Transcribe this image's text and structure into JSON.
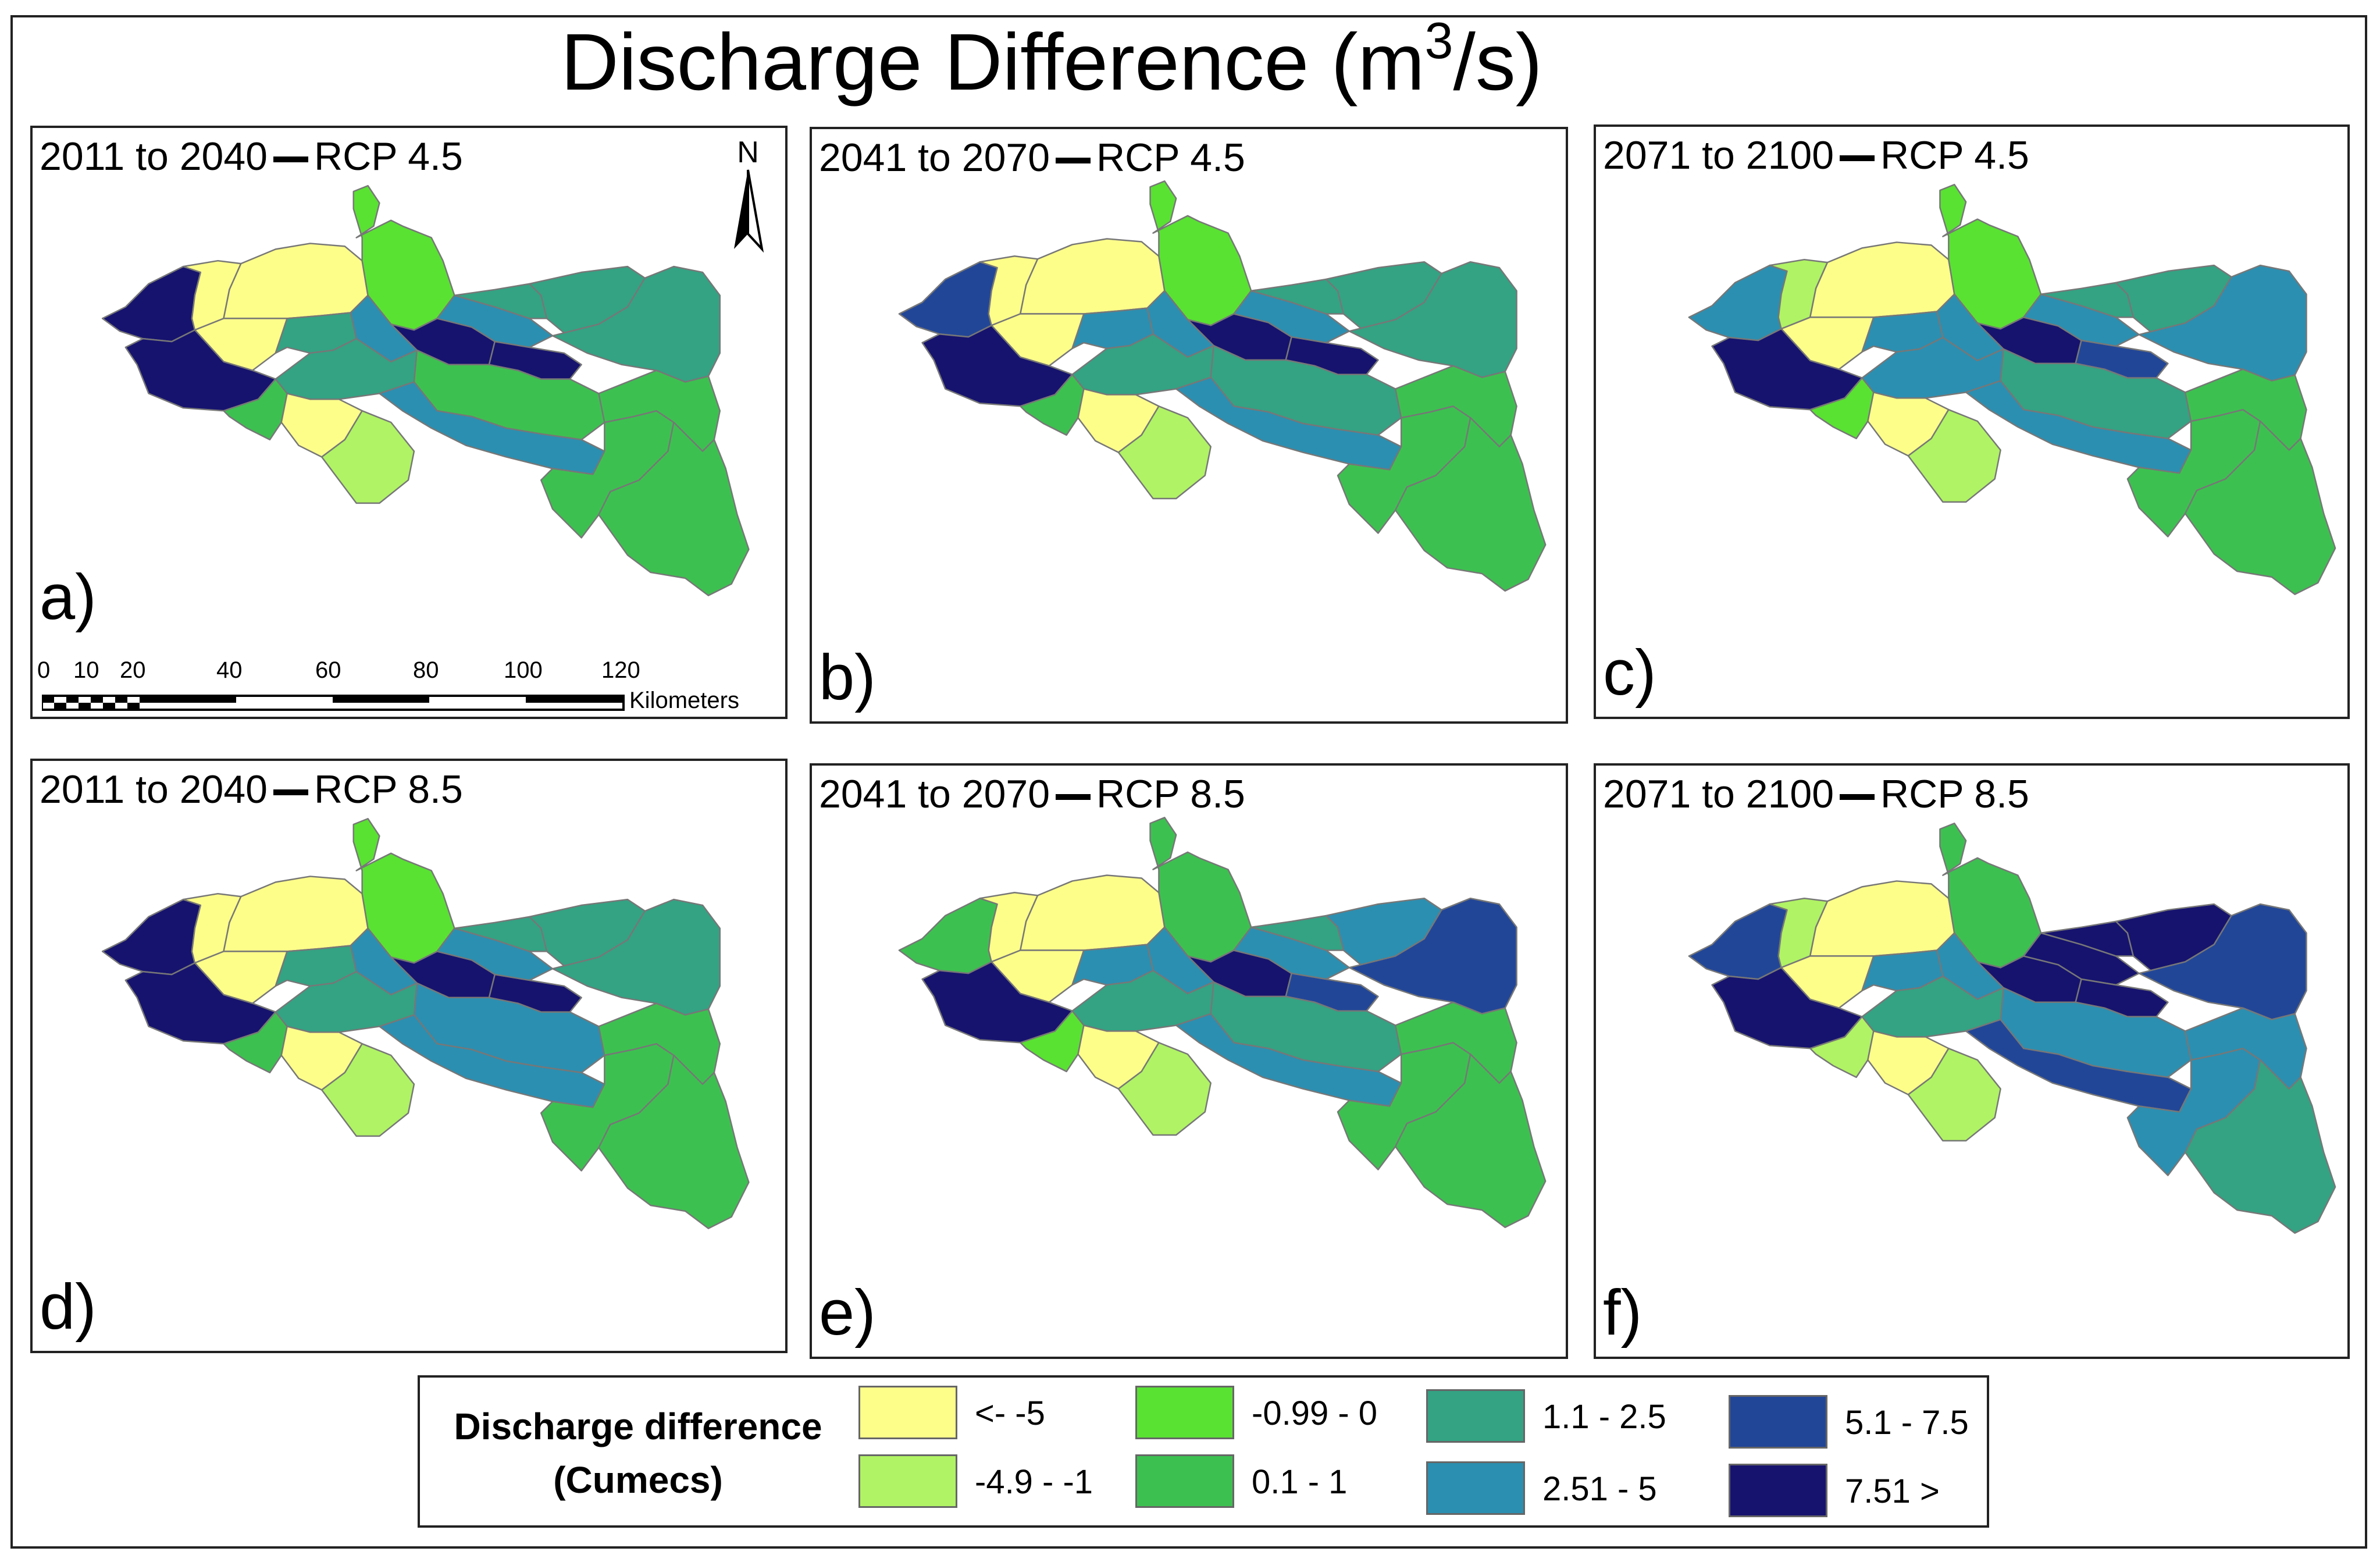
{
  "title": {
    "main": "Discharge Difference (m",
    "sup": "3",
    "tail": "/s)"
  },
  "panels": [
    {
      "label": "a)",
      "period": "2011 to 2040",
      "scenario": "RCP 4.5",
      "colors": [
        "#16136e",
        "#fdfd8a",
        "#fdfd8a",
        "#59e232",
        "#fdfd8a",
        "#16136e",
        "#33a383",
        "#2b8fb1",
        "#16136e",
        "#2b8fb1",
        "#16136e",
        "#33a383",
        "#3cc150",
        "#3cc150",
        "#fdfd8a",
        "#b0f364",
        "#2b8fb1",
        "#33a383",
        "#33a383",
        "#33a383",
        "#3cc150",
        "#3cc150",
        "#3cc150"
      ]
    },
    {
      "label": "b)",
      "period": "2041 to 2070",
      "scenario": "RCP 4.5",
      "colors": [
        "#224697",
        "#fdfd8a",
        "#fdfd8a",
        "#59e232",
        "#fdfd8a",
        "#16136e",
        "#2b8fb1",
        "#2b8fb1",
        "#16136e",
        "#2b8fb1",
        "#16136e",
        "#33a383",
        "#3cc150",
        "#33a383",
        "#fdfd8a",
        "#b0f364",
        "#2b8fb1",
        "#33a383",
        "#33a383",
        "#33a383",
        "#3cc150",
        "#3cc150",
        "#3cc150"
      ]
    },
    {
      "label": "c)",
      "period": "2071 to 2100",
      "scenario": "RCP 4.5",
      "colors": [
        "#2b8fb1",
        "#b0f364",
        "#fdfd8a",
        "#59e232",
        "#fdfd8a",
        "#16136e",
        "#2b8fb1",
        "#2b8fb1",
        "#16136e",
        "#2b8fb1",
        "#224697",
        "#2b8fb1",
        "#59e232",
        "#33a383",
        "#fdfd8a",
        "#b0f364",
        "#2b8fb1",
        "#33a383",
        "#33a383",
        "#2b8fb1",
        "#3cc150",
        "#3cc150",
        "#3cc150"
      ]
    },
    {
      "label": "d)",
      "period": "2011 to 2040",
      "scenario": "RCP 8.5",
      "colors": [
        "#16136e",
        "#fdfd8a",
        "#fdfd8a",
        "#59e232",
        "#fdfd8a",
        "#16136e",
        "#33a383",
        "#2b8fb1",
        "#16136e",
        "#2b8fb1",
        "#16136e",
        "#33a383",
        "#3cc150",
        "#2b8fb1",
        "#fdfd8a",
        "#b0f364",
        "#2b8fb1",
        "#33a383",
        "#33a383",
        "#33a383",
        "#3cc150",
        "#3cc150",
        "#3cc150"
      ]
    },
    {
      "label": "e)",
      "period": "2041 to 2070",
      "scenario": "RCP 8.5",
      "colors": [
        "#3cc150",
        "#fdfd8a",
        "#fdfd8a",
        "#3cc150",
        "#fdfd8a",
        "#16136e",
        "#2b8fb1",
        "#2b8fb1",
        "#16136e",
        "#2b8fb1",
        "#224697",
        "#33a383",
        "#59e232",
        "#33a383",
        "#fdfd8a",
        "#b0f364",
        "#2b8fb1",
        "#33a383",
        "#2b8fb1",
        "#224697",
        "#3cc150",
        "#3cc150",
        "#3cc150"
      ]
    },
    {
      "label": "f)",
      "period": "2071 to 2100",
      "scenario": "RCP 8.5",
      "colors": [
        "#224697",
        "#b0f364",
        "#fdfd8a",
        "#3cc150",
        "#fdfd8a",
        "#16136e",
        "#2b8fb1",
        "#2b8fb1",
        "#16136e",
        "#16136e",
        "#16136e",
        "#33a383",
        "#b0f364",
        "#2b8fb1",
        "#fdfd8a",
        "#b0f364",
        "#224697",
        "#16136e",
        "#16136e",
        "#224697",
        "#2b8fb1",
        "#2b8fb1",
        "#33a383"
      ]
    }
  ],
  "north_label": "N",
  "scale_bar": {
    "ticks": [
      "0",
      "10",
      "20",
      "40",
      "60",
      "80",
      "100",
      "120"
    ],
    "unit": "Kilometers"
  },
  "legend": {
    "title_line1": "Discharge difference",
    "title_line2": "(Cumecs)",
    "classes": [
      {
        "label": "<- -5",
        "color": "#fdfd8a"
      },
      {
        "label": "-4.9 - -1",
        "color": "#b0f364"
      },
      {
        "label": "-0.99 - 0",
        "color": "#59e232"
      },
      {
        "label": "0.1 - 1",
        "color": "#3cc150"
      },
      {
        "label": "1.1 - 2.5",
        "color": "#33a383"
      },
      {
        "label": "2.51 - 5",
        "color": "#2b8fb1"
      },
      {
        "label": "5.1 - 7.5",
        "color": "#224697"
      },
      {
        "label": "7.51 >",
        "color": "#16136e"
      }
    ]
  }
}
